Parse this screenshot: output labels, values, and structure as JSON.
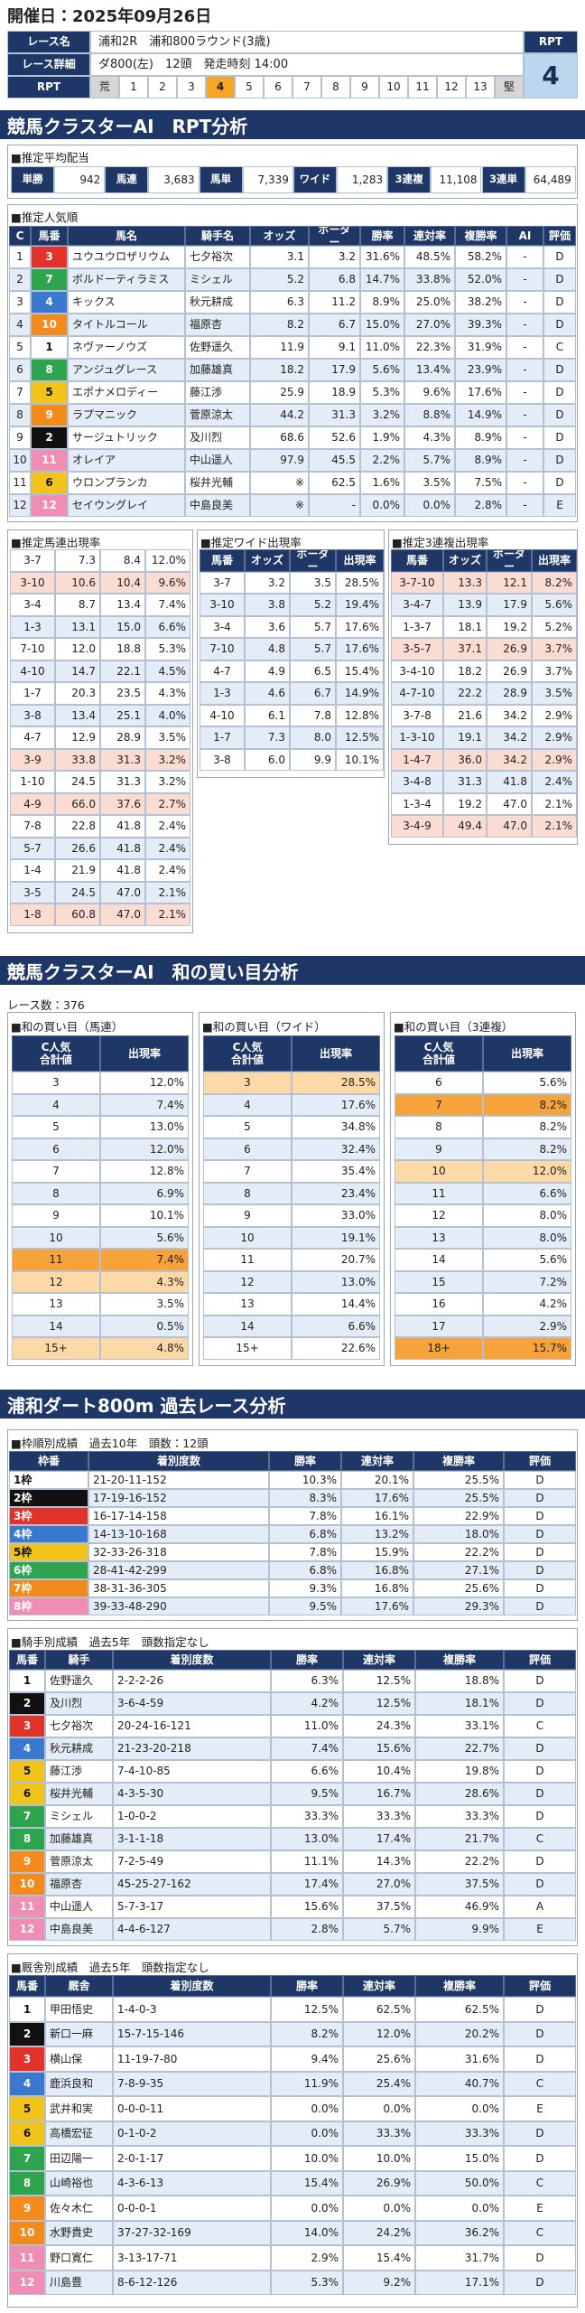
{
  "header": {
    "date": "開催日：2025年09月26日"
  },
  "race_info": {
    "rows": [
      [
        "レース名",
        "浦和2R　浦和800ラウンド(3歳)"
      ],
      [
        "レース詳細",
        "ダ800(左)　12頭　発走時刻 14:00"
      ]
    ],
    "rpt_label": "RPT",
    "rpt_value": 4,
    "scale_label": "RPT",
    "scale": [
      "荒",
      "1",
      "2",
      "3",
      "4",
      "5",
      "6",
      "7",
      "8",
      "9",
      "10",
      "11",
      "12",
      "13",
      "堅"
    ]
  },
  "rpt_section": {
    "title": "競馬クラスターAI　RPT分析",
    "payout": {
      "title": "■推定平均配当",
      "items": [
        {
          "label": "単勝",
          "value": "942"
        },
        {
          "label": "馬連",
          "value": "3,683"
        },
        {
          "label": "馬単",
          "value": "7,339"
        },
        {
          "label": "ワイド",
          "value": "1,283"
        },
        {
          "label": "3連複",
          "value": "11,108"
        },
        {
          "label": "3連単",
          "value": "64,489"
        }
      ]
    },
    "popularity": {
      "title": "■推定人気順",
      "columns": [
        "C",
        "馬番",
        "馬名",
        "騎手名",
        "オッズ",
        "ボーダー",
        "勝率",
        "連対率",
        "複勝率",
        "AI",
        "評価"
      ],
      "rows": [
        [
          "1",
          "3",
          "ユウユウロザリウム",
          "七夕裕次",
          "3.1",
          "3.2",
          "31.6%",
          "48.5%",
          "58.2%",
          "-",
          "D"
        ],
        [
          "2",
          "7",
          "ボルドーティラミス",
          "ミシェル",
          "5.2",
          "6.8",
          "14.7%",
          "33.8%",
          "52.0%",
          "-",
          "D"
        ],
        [
          "3",
          "4",
          "キックス",
          "秋元耕成",
          "6.3",
          "11.2",
          "8.9%",
          "25.0%",
          "38.2%",
          "-",
          "D"
        ],
        [
          "4",
          "10",
          "タイトルコール",
          "福原杏",
          "8.2",
          "6.7",
          "15.0%",
          "27.0%",
          "39.3%",
          "-",
          "D"
        ],
        [
          "5",
          "1",
          "ネヴァーノウズ",
          "佐野遥久",
          "11.9",
          "9.1",
          "11.0%",
          "22.3%",
          "31.9%",
          "-",
          "C"
        ],
        [
          "6",
          "8",
          "アンジュグレース",
          "加藤雄真",
          "18.2",
          "17.9",
          "5.6%",
          "13.4%",
          "23.9%",
          "-",
          "D"
        ],
        [
          "7",
          "5",
          "エポナメロディー",
          "藤江渉",
          "25.9",
          "18.9",
          "5.3%",
          "9.6%",
          "17.6%",
          "-",
          "D"
        ],
        [
          "8",
          "9",
          "ラプマニック",
          "菅原涼太",
          "44.2",
          "31.3",
          "3.2%",
          "8.8%",
          "14.9%",
          "-",
          "D"
        ],
        [
          "9",
          "2",
          "サージュトリック",
          "及川烈",
          "68.6",
          "52.6",
          "1.9%",
          "4.3%",
          "8.9%",
          "-",
          "D"
        ],
        [
          "10",
          "11",
          "オレイア",
          "中山遥人",
          "97.9",
          "45.5",
          "2.2%",
          "5.7%",
          "8.9%",
          "-",
          "D"
        ],
        [
          "11",
          "6",
          "ウロンプランカ",
          "桜井光輔",
          "※",
          "62.5",
          "1.6%",
          "3.5%",
          "7.5%",
          "-",
          "D"
        ],
        [
          "12",
          "12",
          "セイウングレイ",
          "中島良美",
          "※",
          "-",
          "0.0%",
          "0.0%",
          "2.8%",
          "-",
          "E"
        ]
      ]
    },
    "pair_tables": [
      {
        "title": "■推定馬連出現率",
        "rows": [
          [
            "3-7",
            "7.3",
            "8.4",
            "12.0%"
          ],
          [
            "3-10",
            "10.6",
            "10.4",
            "9.6%"
          ],
          [
            "3-4",
            "8.7",
            "13.4",
            "7.4%"
          ],
          [
            "1-3",
            "13.1",
            "15.0",
            "6.6%"
          ],
          [
            "7-10",
            "12.0",
            "18.8",
            "5.3%"
          ],
          [
            "4-10",
            "14.7",
            "22.1",
            "4.5%"
          ],
          [
            "1-7",
            "20.3",
            "23.5",
            "4.3%"
          ],
          [
            "3-8",
            "13.4",
            "25.1",
            "4.0%"
          ],
          [
            "4-7",
            "12.9",
            "28.9",
            "3.5%"
          ],
          [
            "3-9",
            "33.8",
            "31.3",
            "3.2%"
          ],
          [
            "1-10",
            "24.5",
            "31.3",
            "3.2%"
          ],
          [
            "4-9",
            "66.0",
            "37.6",
            "2.7%"
          ],
          [
            "7-8",
            "22.8",
            "41.8",
            "2.4%"
          ],
          [
            "5-7",
            "26.6",
            "41.8",
            "2.4%"
          ],
          [
            "1-4",
            "21.9",
            "41.8",
            "2.4%"
          ],
          [
            "3-5",
            "24.5",
            "47.0",
            "2.1%"
          ],
          [
            "1-8",
            "60.8",
            "47.0",
            "2.1%"
          ]
        ]
      },
      {
        "title": "■推定ワイド出現率",
        "columns": [
          "馬番",
          "オッズ",
          "ボーダー",
          "出現率"
        ],
        "rows": [
          [
            "3-7",
            "3.2",
            "3.5",
            "28.5%"
          ],
          [
            "3-10",
            "3.8",
            "5.2",
            "19.4%"
          ],
          [
            "3-4",
            "3.6",
            "5.7",
            "17.6%"
          ],
          [
            "7-10",
            "4.8",
            "5.7",
            "17.6%"
          ],
          [
            "4-7",
            "4.9",
            "6.5",
            "15.4%"
          ],
          [
            "1-3",
            "4.6",
            "6.7",
            "14.9%"
          ],
          [
            "4-10",
            "6.1",
            "7.8",
            "12.8%"
          ],
          [
            "1-7",
            "7.3",
            "8.0",
            "12.5%"
          ],
          [
            "3-8",
            "6.0",
            "9.9",
            "10.1%"
          ]
        ]
      },
      {
        "title": "■推定3連複出現率",
        "columns": [
          "馬番",
          "オッズ",
          "ボーダー",
          "出現率"
        ],
        "rows": [
          [
            "3-7-10",
            "13.3",
            "12.1",
            "8.2%"
          ],
          [
            "3-4-7",
            "13.9",
            "17.9",
            "5.6%"
          ],
          [
            "1-3-7",
            "18.1",
            "19.2",
            "5.2%"
          ],
          [
            "3-5-7",
            "37.1",
            "26.9",
            "3.7%"
          ],
          [
            "3-4-10",
            "18.2",
            "26.9",
            "3.7%"
          ],
          [
            "4-7-10",
            "22.2",
            "28.9",
            "3.5%"
          ],
          [
            "3-7-8",
            "21.6",
            "34.2",
            "2.9%"
          ],
          [
            "1-3-10",
            "19.1",
            "34.2",
            "2.9%"
          ],
          [
            "1-4-7",
            "36.0",
            "34.2",
            "2.9%"
          ],
          [
            "3-4-8",
            "31.3",
            "41.8",
            "2.4%"
          ],
          [
            "1-3-4",
            "19.2",
            "47.0",
            "2.1%"
          ],
          [
            "3-4-9",
            "49.4",
            "47.0",
            "2.1%"
          ]
        ]
      }
    ]
  },
  "sum_section": {
    "title": "競馬クラスターAI　和の買い目分析",
    "race_count": "レース数：376",
    "tables": [
      {
        "title": "■和の買い目（馬連）",
        "columns": [
          "C人気\n合計値",
          "出現率"
        ],
        "rows": [
          [
            "3",
            "12.0%"
          ],
          [
            "4",
            "7.4%"
          ],
          [
            "5",
            "13.0%"
          ],
          [
            "6",
            "12.0%"
          ],
          [
            "7",
            "12.8%"
          ],
          [
            "8",
            "6.9%"
          ],
          [
            "9",
            "10.1%"
          ],
          [
            "10",
            "5.6%"
          ],
          [
            "11",
            "7.4%"
          ],
          [
            "12",
            "4.3%"
          ],
          [
            "13",
            "3.5%"
          ],
          [
            "14",
            "0.5%"
          ],
          [
            "15+",
            "4.8%"
          ]
        ],
        "highlight": {
          "8": "#f6a33b",
          "9": "#fcd9a6",
          "12": "#fcd9a6"
        }
      },
      {
        "title": "■和の買い目（ワイド）",
        "columns": [
          "C人気\n合計値",
          "出現率"
        ],
        "rows": [
          [
            "3",
            "28.5%"
          ],
          [
            "4",
            "17.6%"
          ],
          [
            "5",
            "34.8%"
          ],
          [
            "6",
            "32.4%"
          ],
          [
            "7",
            "35.4%"
          ],
          [
            "8",
            "23.4%"
          ],
          [
            "9",
            "33.0%"
          ],
          [
            "10",
            "19.1%"
          ],
          [
            "11",
            "20.7%"
          ],
          [
            "12",
            "13.0%"
          ],
          [
            "13",
            "14.4%"
          ],
          [
            "14",
            "6.6%"
          ],
          [
            "15+",
            "22.6%"
          ]
        ],
        "highlight": {
          "0": "#fcd9a6"
        }
      },
      {
        "title": "■和の買い目（3連複）",
        "columns": [
          "C人気\n合計値",
          "出現率"
        ],
        "rows": [
          [
            "6",
            "5.6%"
          ],
          [
            "7",
            "8.2%"
          ],
          [
            "8",
            "8.2%"
          ],
          [
            "9",
            "8.2%"
          ],
          [
            "10",
            "12.0%"
          ],
          [
            "11",
            "6.6%"
          ],
          [
            "12",
            "8.0%"
          ],
          [
            "13",
            "8.0%"
          ],
          [
            "14",
            "5.6%"
          ],
          [
            "15",
            "7.2%"
          ],
          [
            "16",
            "4.2%"
          ],
          [
            "17",
            "2.9%"
          ],
          [
            "18+",
            "15.7%"
          ]
        ],
        "highlight": {
          "1": "#f6a33b",
          "4": "#fcd9a6",
          "12": "#f6a33b"
        }
      }
    ]
  },
  "past_section": {
    "title": "浦和ダート800m 過去レース分析",
    "frame": {
      "title": "■枠順別成績　過去10年　頭数：12頭",
      "columns": [
        "枠番",
        "着別度数",
        "勝率",
        "連対率",
        "複勝率",
        "評価"
      ],
      "rows": [
        [
          "1枠",
          "21-20-11-152",
          "10.3%",
          "20.1%",
          "25.5%",
          "D"
        ],
        [
          "2枠",
          "17-19-16-152",
          "8.3%",
          "17.6%",
          "25.5%",
          "D"
        ],
        [
          "3枠",
          "16-17-14-158",
          "7.8%",
          "16.1%",
          "22.9%",
          "D"
        ],
        [
          "4枠",
          "14-13-10-168",
          "6.8%",
          "13.2%",
          "18.0%",
          "D"
        ],
        [
          "5枠",
          "32-33-26-318",
          "7.8%",
          "15.9%",
          "22.2%",
          "D"
        ],
        [
          "6枠",
          "28-41-42-299",
          "6.8%",
          "16.8%",
          "27.1%",
          "D"
        ],
        [
          "7枠",
          "38-31-36-305",
          "9.3%",
          "16.8%",
          "25.6%",
          "D"
        ],
        [
          "8枠",
          "39-33-48-290",
          "9.5%",
          "17.6%",
          "29.3%",
          "D"
        ]
      ]
    },
    "jockey": {
      "title": "■騎手別成績　過去5年　頭数指定なし",
      "columns": [
        "馬番",
        "騎手",
        "着別度数",
        "勝率",
        "連対率",
        "複勝率",
        "評価"
      ],
      "rows": [
        [
          "1",
          "佐野遥久",
          "2-2-2-26",
          "6.3%",
          "12.5%",
          "18.8%",
          "D"
        ],
        [
          "2",
          "及川烈",
          "3-6-4-59",
          "4.2%",
          "12.5%",
          "18.1%",
          "D"
        ],
        [
          "3",
          "七夕裕次",
          "20-24-16-121",
          "11.0%",
          "24.3%",
          "33.1%",
          "C"
        ],
        [
          "4",
          "秋元耕成",
          "21-23-20-218",
          "7.4%",
          "15.6%",
          "22.7%",
          "D"
        ],
        [
          "5",
          "藤江渉",
          "7-4-10-85",
          "6.6%",
          "10.4%",
          "19.8%",
          "D"
        ],
        [
          "6",
          "桜井光輔",
          "4-3-5-30",
          "9.5%",
          "16.7%",
          "28.6%",
          "D"
        ],
        [
          "7",
          "ミシェル",
          "1-0-0-2",
          "33.3%",
          "33.3%",
          "33.3%",
          "D"
        ],
        [
          "8",
          "加藤雄真",
          "3-1-1-18",
          "13.0%",
          "17.4%",
          "21.7%",
          "C"
        ],
        [
          "9",
          "菅原涼太",
          "7-2-5-49",
          "11.1%",
          "14.3%",
          "22.2%",
          "D"
        ],
        [
          "10",
          "福原杏",
          "45-25-27-162",
          "17.4%",
          "27.0%",
          "37.5%",
          "D"
        ],
        [
          "11",
          "中山遥人",
          "5-7-3-17",
          "15.6%",
          "37.5%",
          "46.9%",
          "A"
        ],
        [
          "12",
          "中島良美",
          "4-4-6-127",
          "2.8%",
          "5.7%",
          "9.9%",
          "E"
        ]
      ]
    },
    "stable": {
      "title": "■厩舎別成績　過去5年　頭数指定なし",
      "columns": [
        "馬番",
        "厩舎",
        "着別度数",
        "勝率",
        "連対率",
        "複勝率",
        "評価"
      ],
      "rows": [
        [
          "1",
          "甲田悟史",
          "1-4-0-3",
          "12.5%",
          "62.5%",
          "62.5%",
          "D"
        ],
        [
          "2",
          "新口一麻",
          "15-7-15-146",
          "8.2%",
          "12.0%",
          "20.2%",
          "D"
        ],
        [
          "3",
          "横山保",
          "11-19-7-80",
          "9.4%",
          "25.6%",
          "31.6%",
          "D"
        ],
        [
          "4",
          "鹿浜良和",
          "7-8-9-35",
          "11.9%",
          "25.4%",
          "40.7%",
          "C"
        ],
        [
          "5",
          "武井和実",
          "0-0-0-11",
          "0.0%",
          "0.0%",
          "0.0%",
          "E"
        ],
        [
          "6",
          "高橋宏征",
          "0-1-0-2",
          "0.0%",
          "33.3%",
          "33.3%",
          "D"
        ],
        [
          "7",
          "田辺陽一",
          "2-0-1-17",
          "10.0%",
          "10.0%",
          "15.0%",
          "D"
        ],
        [
          "8",
          "山崎裕也",
          "4-3-6-13",
          "15.4%",
          "26.9%",
          "50.0%",
          "C"
        ],
        [
          "9",
          "佐々木仁",
          "0-0-0-1",
          "0.0%",
          "0.0%",
          "0.0%",
          "E"
        ],
        [
          "10",
          "水野貴史",
          "37-27-32-169",
          "14.0%",
          "24.2%",
          "36.2%",
          "C"
        ],
        [
          "11",
          "野口寛仁",
          "3-13-17-71",
          "2.9%",
          "15.4%",
          "31.7%",
          "D"
        ],
        [
          "12",
          "川島豊",
          "8-6-12-126",
          "5.3%",
          "9.2%",
          "17.1%",
          "D"
        ]
      ]
    }
  }
}
